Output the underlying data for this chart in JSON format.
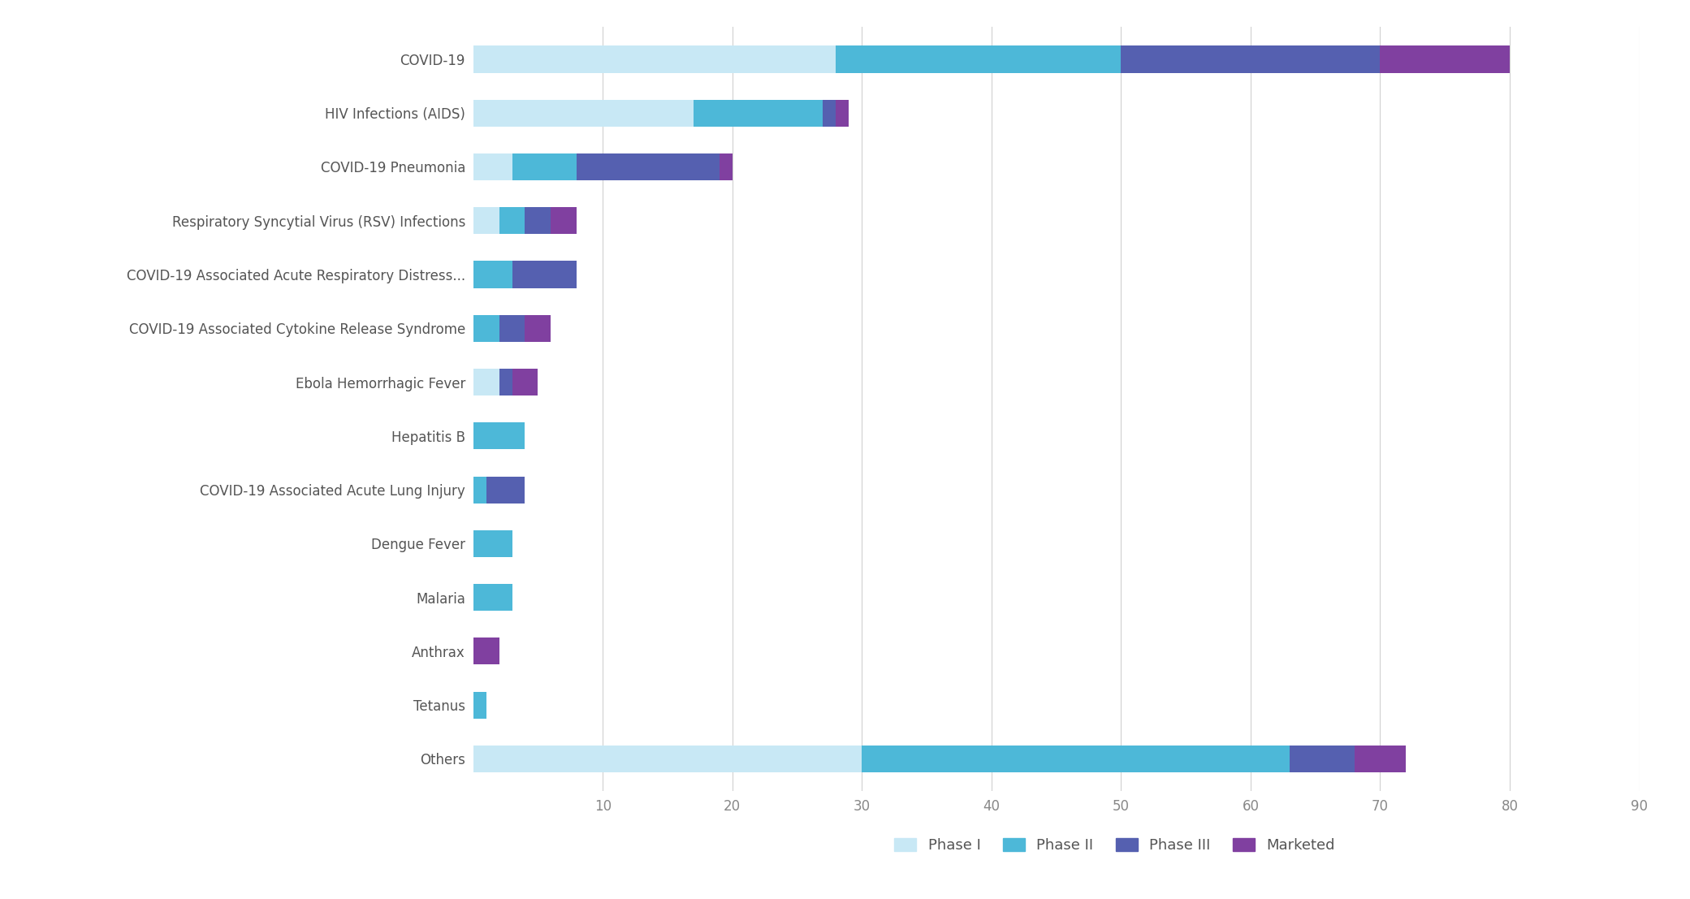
{
  "categories": [
    "COVID-19",
    "HIV Infections (AIDS)",
    "COVID-19 Pneumonia",
    "Respiratory Syncytial Virus (RSV) Infections",
    "COVID-19 Associated Acute Respiratory Distress...",
    "COVID-19 Associated Cytokine Release Syndrome",
    "Ebola Hemorrhagic Fever",
    "Hepatitis B",
    "COVID-19 Associated Acute Lung Injury",
    "Dengue Fever",
    "Malaria",
    "Anthrax",
    "Tetanus",
    "Others"
  ],
  "phase_I": [
    28,
    17,
    3,
    2,
    0,
    0,
    2,
    0,
    0,
    0,
    0,
    0,
    0,
    30
  ],
  "phase_II": [
    22,
    10,
    5,
    2,
    3,
    2,
    0,
    4,
    1,
    3,
    3,
    0,
    1,
    33
  ],
  "phase_III": [
    20,
    1,
    11,
    2,
    5,
    2,
    1,
    0,
    3,
    0,
    0,
    0,
    0,
    5
  ],
  "marketed": [
    10,
    1,
    1,
    2,
    0,
    2,
    2,
    0,
    0,
    0,
    0,
    2,
    0,
    4
  ],
  "color_phase_I": "#C8E8F5",
  "color_phase_II": "#4DB8D8",
  "color_phase_III": "#5560B0",
  "color_marketed": "#8040A0",
  "xlim": [
    0,
    90
  ],
  "xticks": [
    10,
    20,
    30,
    40,
    50,
    60,
    70,
    80,
    90
  ],
  "legend_labels": [
    "Phase I",
    "Phase II",
    "Phase III",
    "Marketed"
  ],
  "background_color": "#FFFFFF",
  "grid_color": "#D0D0D0",
  "bar_height": 0.5,
  "figsize": [
    20.81,
    11.07
  ],
  "dpi": 100,
  "label_fontsize": 12,
  "tick_fontsize": 12,
  "legend_fontsize": 13
}
